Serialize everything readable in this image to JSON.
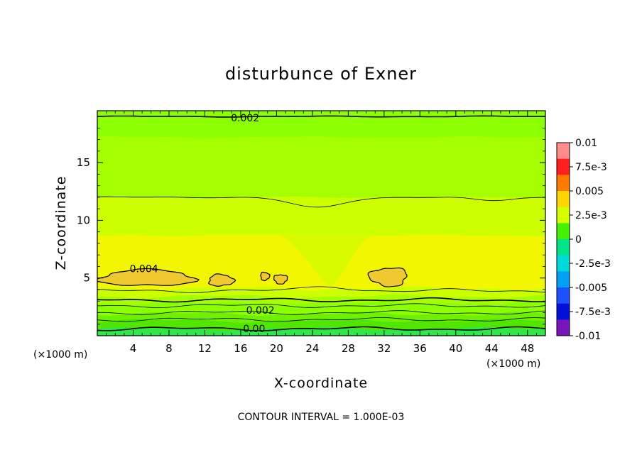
{
  "chart_data": {
    "type": "heatmap",
    "title": "disturbunce of Exner",
    "xlabel": "X-coordinate",
    "ylabel": "Z-coordinate",
    "x_unit": "(×1000 m)",
    "y_unit": "(×1000 m)",
    "xlim": [
      0,
      50
    ],
    "ylim": [
      0,
      19.5
    ],
    "x_ticks": [
      4,
      8,
      12,
      16,
      20,
      24,
      28,
      32,
      36,
      40,
      44,
      48
    ],
    "y_ticks": [
      5,
      10,
      15
    ],
    "contour_interval_text": "CONTOUR INTERVAL = 1.000E-03",
    "colorbar": {
      "labels": [
        "0.01",
        "7.5e-3",
        "0.005",
        "2.5e-3",
        "0",
        "-2.5e-3",
        "-0.005",
        "-7.5e-3",
        "-0.01"
      ],
      "colors": [
        "#ff8c8c",
        "#ff1f1f",
        "#ff7a00",
        "#ffd400",
        "#d6ff00",
        "#46f000",
        "#00e58c",
        "#00d9d9",
        "#00a0f2",
        "#1e52ff",
        "#0010d8",
        "#7814bc"
      ]
    },
    "contour_labels": [
      {
        "text": "0.002",
        "x": 16.5,
        "z": 18.9
      },
      {
        "text": "0.004",
        "x": 5.2,
        "z": 5.8
      },
      {
        "text": "0.002",
        "x": 18.2,
        "z": 2.2
      },
      {
        "text": "0.00",
        "x": 17.5,
        "z": 0.6
      }
    ],
    "field_bands": [
      {
        "from": 17.2,
        "to": 19.5,
        "value": 0.0018,
        "color": "#8cff00"
      },
      {
        "from": 12.0,
        "to": 17.2,
        "value": 0.0025,
        "color": "#a6ff00"
      },
      {
        "from": 8.7,
        "to": 12.0,
        "value": 0.003,
        "color": "#ccff00"
      },
      {
        "from": 4.1,
        "to": 8.7,
        "value": 0.0036,
        "color": "#f2f700"
      },
      {
        "from": 3.4,
        "to": 4.1,
        "value": 0.003,
        "color": "#ccff00"
      },
      {
        "from": 2.8,
        "to": 3.4,
        "value": 0.0025,
        "color": "#a6ff00"
      },
      {
        "from": 1.9,
        "to": 2.8,
        "value": 0.0018,
        "color": "#8cff00"
      },
      {
        "from": 1.3,
        "to": 1.9,
        "value": 0.0012,
        "color": "#6ef000"
      },
      {
        "from": 0.6,
        "to": 1.3,
        "value": 0.0005,
        "color": "#50e600"
      },
      {
        "from": 0.0,
        "to": 0.6,
        "value": -0.0002,
        "color": "#2ee84a"
      }
    ],
    "high_regions": [
      {
        "value": 0.004,
        "color": "#f0c830",
        "x": [
          0.3,
          10.8
        ],
        "z": [
          4.3,
          5.7
        ]
      },
      {
        "value": 0.004,
        "color": "#f0c830",
        "x": [
          12.4,
          15.2
        ],
        "z": [
          4.3,
          5.3
        ]
      },
      {
        "value": 0.004,
        "color": "#f0c830",
        "x": [
          18.2,
          19.2
        ],
        "z": [
          4.8,
          5.5
        ]
      },
      {
        "value": 0.004,
        "color": "#f0c830",
        "x": [
          19.7,
          21.2
        ],
        "z": [
          4.5,
          5.3
        ]
      },
      {
        "value": 0.004,
        "color": "#f0c830",
        "x": [
          30.4,
          34.6
        ],
        "z": [
          4.3,
          5.9
        ]
      }
    ]
  }
}
